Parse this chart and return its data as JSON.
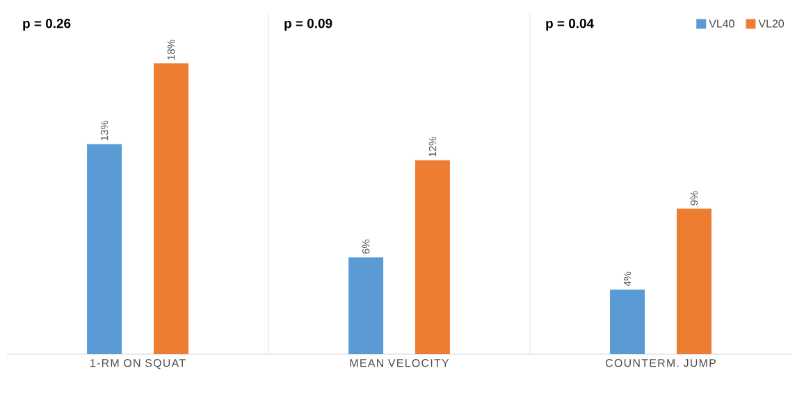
{
  "chart_data": {
    "type": "bar",
    "categories": [
      "1-RM ON SQUAT",
      "MEAN VELOCITY",
      "COUNTERM. JUMP"
    ],
    "series": [
      {
        "name": "VL40",
        "color": "#5b9bd5",
        "values": [
          13,
          6,
          4
        ],
        "value_labels": [
          "13%",
          "6%",
          "4%"
        ]
      },
      {
        "name": "VL20",
        "color": "#ed7d31",
        "values": [
          18,
          12,
          9
        ],
        "value_labels": [
          "18%",
          "12%",
          "9%"
        ]
      }
    ],
    "annotations": [
      "p = 0.26",
      "p = 0.09",
      "p = 0.04"
    ],
    "grid": "x",
    "legend": "top right"
  }
}
